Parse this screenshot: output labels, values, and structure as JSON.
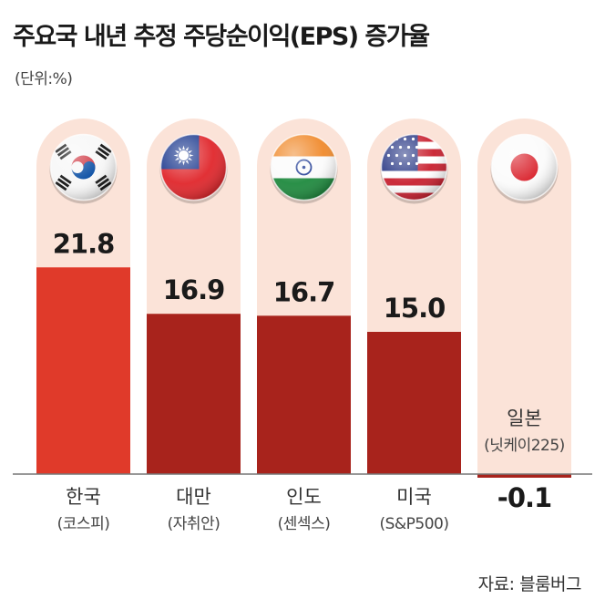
{
  "title": "주요국 내년 추정 주당순이익(EPS) 증가율",
  "unit": "(단위:%)",
  "source": "자료: 블룸버그",
  "colors": {
    "pill": "#fbe3d8",
    "korea_bar": "#e03a2a",
    "other_bar": "#a8231c",
    "axis": "#777777"
  },
  "chart_data": {
    "type": "bar",
    "title": "주요국 내년 추정 주당순이익(EPS) 증가율",
    "ylabel": "(단위:%)",
    "ylim": [
      -0.3,
      22
    ],
    "categories": [
      {
        "name": "한국",
        "index": "(코스피)",
        "value": 21.8,
        "value_label": "21.8",
        "flag": "korea-flag",
        "highlight": true
      },
      {
        "name": "대만",
        "index": "(자취안)",
        "value": 16.9,
        "value_label": "16.9",
        "flag": "taiwan-flag",
        "highlight": false
      },
      {
        "name": "인도",
        "index": "(센섹스)",
        "value": 16.7,
        "value_label": "16.7",
        "flag": "india-flag",
        "highlight": false
      },
      {
        "name": "미국",
        "index": "(S&P500)",
        "value": 15.0,
        "value_label": "15.0",
        "flag": "usa-flag",
        "highlight": false
      },
      {
        "name": "일본",
        "index": "(닛케이225)",
        "value": -0.1,
        "value_label": "-0.1",
        "flag": "japan-flag",
        "highlight": false
      }
    ]
  }
}
